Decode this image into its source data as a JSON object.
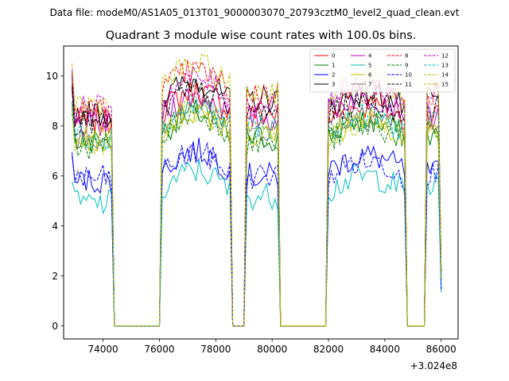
{
  "chart_data": {
    "type": "line",
    "suptitle": "Data file: modeM0/AS1A05_013T01_9000003070_20793cztM0_level2_quad_clean.evt",
    "title": "Quadrant 3 module wise count rates with 100.0s bins.",
    "xlabel": "",
    "ylabel": "",
    "x_offset_label": "+3.024e8",
    "xlim": [
      72600,
      86600
    ],
    "ylim": [
      -0.52,
      11.2
    ],
    "xticks": [
      74000,
      76000,
      78000,
      80000,
      82000,
      84000,
      86000
    ],
    "xtick_labels": [
      "74000",
      "76000",
      "78000",
      "80000",
      "82000",
      "84000",
      "86000"
    ],
    "yticks": [
      0,
      2,
      4,
      6,
      8,
      10
    ],
    "ytick_labels": [
      "0",
      "2",
      "4",
      "6",
      "8",
      "10"
    ],
    "legend_position": "upper right",
    "bin_seconds": 100,
    "segments": [
      {
        "start": 72900,
        "end": 74300
      },
      {
        "start": 76100,
        "end": 78500
      },
      {
        "start": 79100,
        "end": 80200
      },
      {
        "start": 82000,
        "end": 84700
      },
      {
        "start": 85500,
        "end": 86000
      }
    ],
    "gaps": [
      {
        "start": 74400,
        "end": 76000
      },
      {
        "start": 78600,
        "end": 79000
      },
      {
        "start": 80300,
        "end": 81900
      },
      {
        "start": 84800,
        "end": 85400
      }
    ],
    "series": [
      {
        "name": "0",
        "color": "#ff0000",
        "dashed": false,
        "levels": [
          8.2,
          8.6,
          8.5,
          8.2,
          8.5
        ]
      },
      {
        "name": "1",
        "color": "#008000",
        "dashed": false,
        "levels": [
          7.4,
          7.7,
          7.5,
          7.6,
          7.6
        ]
      },
      {
        "name": "2",
        "color": "#0000ff",
        "dashed": false,
        "levels": [
          5.8,
          6.2,
          6.0,
          6.2,
          6.1
        ]
      },
      {
        "name": "3",
        "color": "#000000",
        "dashed": false,
        "levels": [
          8.5,
          9.0,
          9.1,
          8.7,
          9.0
        ]
      },
      {
        "name": "4",
        "color": "#bf00bf",
        "dashed": false,
        "levels": [
          8.0,
          8.4,
          8.3,
          8.6,
          8.4
        ]
      },
      {
        "name": "5",
        "color": "#00bfbf",
        "dashed": false,
        "levels": [
          4.9,
          5.4,
          5.2,
          5.4,
          5.6
        ]
      },
      {
        "name": "6",
        "color": "#bfbf00",
        "dashed": false,
        "levels": [
          7.5,
          7.8,
          7.6,
          7.6,
          7.7
        ]
      },
      {
        "name": "7",
        "color": "#808080",
        "dashed": false,
        "levels": [
          7.6,
          8.0,
          7.9,
          7.8,
          7.9
        ]
      },
      {
        "name": "8",
        "color": "#ff0000",
        "dashed": true,
        "levels": [
          8.6,
          9.4,
          9.3,
          8.8,
          9.2
        ]
      },
      {
        "name": "9",
        "color": "#008000",
        "dashed": true,
        "levels": [
          7.2,
          7.7,
          7.3,
          7.4,
          7.6
        ]
      },
      {
        "name": "10",
        "color": "#0000ff",
        "dashed": true,
        "levels": [
          5.9,
          6.1,
          6.0,
          6.0,
          6.1
        ]
      },
      {
        "name": "11",
        "color": "#000000",
        "dashed": true,
        "levels": [
          8.1,
          8.6,
          8.5,
          8.4,
          8.8
        ]
      },
      {
        "name": "12",
        "color": "#bf00bf",
        "dashed": true,
        "levels": [
          8.7,
          9.1,
          8.9,
          9.0,
          9.3
        ]
      },
      {
        "name": "13",
        "color": "#00bfbf",
        "dashed": true,
        "levels": [
          7.6,
          8.0,
          7.9,
          7.8,
          8.0
        ]
      },
      {
        "name": "14",
        "color": "#bfbf00",
        "dashed": true,
        "levels": [
          8.9,
          9.6,
          9.4,
          9.2,
          9.5
        ]
      },
      {
        "name": "15",
        "color": "#bfbf00",
        "dashed": true,
        "levels": [
          7.4,
          7.8,
          7.7,
          7.6,
          7.8
        ]
      }
    ]
  }
}
